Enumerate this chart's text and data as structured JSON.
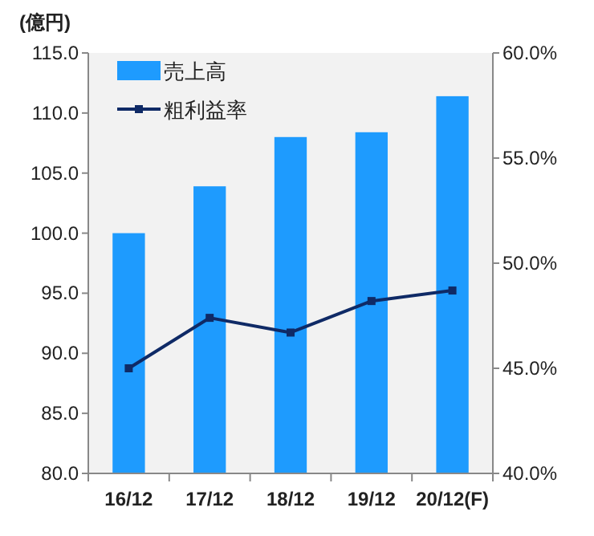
{
  "chart_data": {
    "type": "bar",
    "ylabel": "(億円)",
    "categories": [
      "16/12",
      "17/12",
      "18/12",
      "19/12",
      "20/12(F)"
    ],
    "series": [
      {
        "name": "売上高",
        "color": "#1e9bfe",
        "values": [
          100.0,
          103.9,
          108.0,
          108.4,
          111.4
        ]
      },
      {
        "name": "粗利益率",
        "type": "line",
        "axis": "y2",
        "color": "#0f2a66",
        "marker": "square",
        "values": [
          45.0,
          47.4,
          46.7,
          48.2,
          48.7
        ]
      }
    ],
    "ylim": [
      80,
      115
    ],
    "yticks": [
      {
        "value": 80,
        "label": "80.0"
      },
      {
        "value": 85,
        "label": "85.0"
      },
      {
        "value": 90,
        "label": "90.0"
      },
      {
        "value": 95,
        "label": "95.0"
      },
      {
        "value": 100,
        "label": "100.0"
      },
      {
        "value": 105,
        "label": "105.0"
      },
      {
        "value": 110,
        "label": "110.0"
      },
      {
        "value": 115,
        "label": "115.0"
      }
    ],
    "y2lim": [
      40,
      60
    ],
    "y2ticks": [
      {
        "value": 40,
        "label": "40.0%"
      },
      {
        "value": 45,
        "label": "45.0%"
      },
      {
        "value": 50,
        "label": "50.0%"
      },
      {
        "value": 55,
        "label": "55.0%"
      },
      {
        "value": 60,
        "label": "60.0%"
      }
    ],
    "grid": false,
    "legend": "top left"
  }
}
